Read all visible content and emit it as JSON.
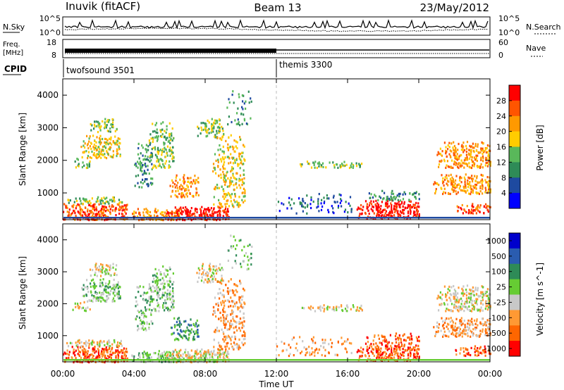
{
  "header": {
    "station": "Inuvik (fitACF)",
    "beam": "Beam 13",
    "date": "23/May/2012"
  },
  "nsky_panel": {
    "left_label": "N.Sky",
    "right_label": "N.Search",
    "left_ticks": [
      "10^5",
      "10^0"
    ],
    "right_ticks": [
      "10^5",
      "10^0"
    ]
  },
  "freq_panel": {
    "left_label_1": "Freq.",
    "left_label_2": "[MHz]",
    "right_label": "Nave",
    "left_ticks": [
      "18",
      "8"
    ],
    "right_ticks": [
      "60",
      "0"
    ]
  },
  "cpid": {
    "label": "CPID",
    "modes": [
      {
        "name": "twofsound 3501",
        "start_hour": 0
      },
      {
        "name": "themis 3300",
        "start_hour": 12
      }
    ]
  },
  "time_axis": {
    "label": "Time UT",
    "ticks": [
      "00:00",
      "04:00",
      "08:00",
      "12:00",
      "16:00",
      "20:00",
      "00:00"
    ]
  },
  "colors": {
    "power_scale": [
      "#0000ff",
      "#1e4aa0",
      "#2e8b57",
      "#59b85a",
      "#ffcc00",
      "#ff9900",
      "#ff5500",
      "#ff0000"
    ],
    "velocity_scale": [
      "#0000cc",
      "#2a5cb0",
      "#2e8b57",
      "#66cc33",
      "#c8c8c8",
      "#ff9933",
      "#ff6600",
      "#ff0000"
    ]
  },
  "chart_data": [
    {
      "type": "heatmap",
      "ylabel": "Slant Range [km]",
      "xlabel": "",
      "xlim": [
        0,
        24
      ],
      "ylim": [
        180,
        4500
      ],
      "yticks": [
        "1000",
        "2000",
        "3000",
        "4000"
      ],
      "colorbar": {
        "label": "Power [dB]",
        "ticks": [
          "4",
          "8",
          "12",
          "16",
          "20",
          "24",
          "28"
        ],
        "range": [
          0,
          32
        ]
      }
    },
    {
      "type": "heatmap",
      "ylabel": "Slant Range [km]",
      "xlabel": "Time UT",
      "xlim": [
        0,
        24
      ],
      "ylim": [
        180,
        4500
      ],
      "yticks": [
        "1000",
        "2000",
        "3000",
        "4000"
      ],
      "colorbar": {
        "label": "Velocity [m s^-1]",
        "ticks": [
          "1000",
          "500",
          "100",
          "25",
          "-25",
          "-100",
          "-500",
          "-1000"
        ]
      }
    }
  ]
}
